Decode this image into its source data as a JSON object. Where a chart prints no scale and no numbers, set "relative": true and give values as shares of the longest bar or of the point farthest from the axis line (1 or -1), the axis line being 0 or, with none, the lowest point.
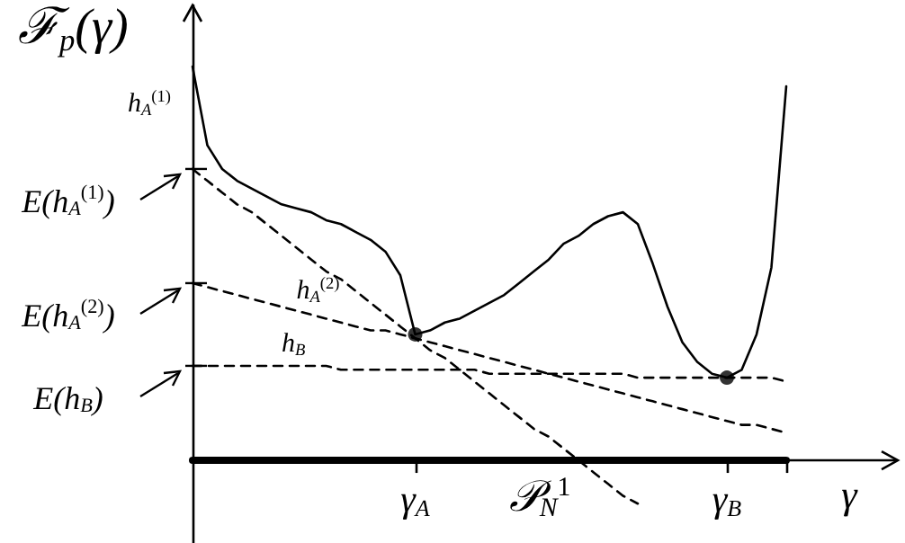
{
  "chart_data": {
    "type": "line",
    "relative": true,
    "marker": "none",
    "xlabel": "γ",
    "ylabel": "ℱ$_{p}$(γ)",
    "categories": [
      null,
      null,
      null,
      null,
      null,
      null,
      null,
      null,
      null,
      null,
      null,
      null,
      null,
      null,
      null,
      "γ$_{A}$",
      null,
      null,
      null,
      null,
      null,
      null,
      null,
      null,
      null,
      null,
      null,
      null,
      null,
      null,
      null,
      null,
      null,
      null,
      null,
      null,
      "γ$_{B}$",
      null,
      null,
      null,
      null
    ],
    "series": [
      {
        "color": "#000000",
        "line_style": "solid",
        "values": [
          1.0,
          0.8,
          0.74,
          0.71,
          0.69,
          0.67,
          0.65,
          0.64,
          0.63,
          0.61,
          0.6,
          0.58,
          0.56,
          0.53,
          0.47,
          0.32,
          0.33,
          0.35,
          0.36,
          0.38,
          0.4,
          0.42,
          0.45,
          0.48,
          0.51,
          0.55,
          0.57,
          0.6,
          0.62,
          0.63,
          0.6,
          0.5,
          0.39,
          0.3,
          0.25,
          0.22,
          0.21,
          0.23,
          0.32,
          0.49,
          0.95
        ]
      },
      {
        "name": "h$_{A}$$^{(1)}$",
        "color": "#000000",
        "line_style": "dashed",
        "values": [
          0.74,
          0.71,
          0.68,
          0.65,
          0.63,
          0.6,
          0.57,
          0.54,
          0.51,
          0.48,
          0.46,
          0.43,
          0.4,
          0.37,
          0.34,
          0.31,
          0.28,
          0.26,
          0.23,
          0.2,
          0.17,
          0.14,
          0.11,
          0.08,
          0.06,
          0.03,
          0.0,
          -0.03,
          -0.06,
          -0.09,
          -0.11,
          null,
          null,
          null,
          null,
          null,
          null,
          null,
          null,
          null,
          null
        ]
      },
      {
        "name": "h$_{A}$$^{(2)}$",
        "color": "#000000",
        "line_style": "dashed",
        "values": [
          0.45,
          0.44,
          0.43,
          0.42,
          0.41,
          0.4,
          0.39,
          0.38,
          0.37,
          0.36,
          0.35,
          0.34,
          0.33,
          0.33,
          0.32,
          0.31,
          0.3,
          0.29,
          0.28,
          0.27,
          0.26,
          0.25,
          0.24,
          0.23,
          0.22,
          0.21,
          0.2,
          0.19,
          0.18,
          0.17,
          0.16,
          0.15,
          0.14,
          0.13,
          0.12,
          0.11,
          0.1,
          0.09,
          0.09,
          0.08,
          0.07
        ]
      },
      {
        "name": "h$_{B}$",
        "color": "#000000",
        "line_style": "dashed",
        "values": [
          0.24,
          0.24,
          0.24,
          0.24,
          0.24,
          0.24,
          0.24,
          0.24,
          0.24,
          0.24,
          0.23,
          0.23,
          0.23,
          0.23,
          0.23,
          0.23,
          0.23,
          0.23,
          0.23,
          0.23,
          0.22,
          0.22,
          0.22,
          0.22,
          0.22,
          0.22,
          0.22,
          0.22,
          0.22,
          0.22,
          0.21,
          0.21,
          0.21,
          0.21,
          0.21,
          0.21,
          0.21,
          0.21,
          0.21,
          0.21,
          0.2
        ]
      },
      {
        "type": "scatter",
        "marker": "circle",
        "color": "#000000",
        "x": [
          "γ$_{A}$",
          "γ$_{B}$"
        ],
        "values": [
          0.32,
          0.21
        ]
      }
    ],
    "annotations": [
      "E(h$_{A}$$^{(1)}$)",
      "E(h$_{A}$$^{(2)}$)",
      "E(h$_{B}$)",
      "𝒫$_{N}$$^{1}$"
    ]
  }
}
